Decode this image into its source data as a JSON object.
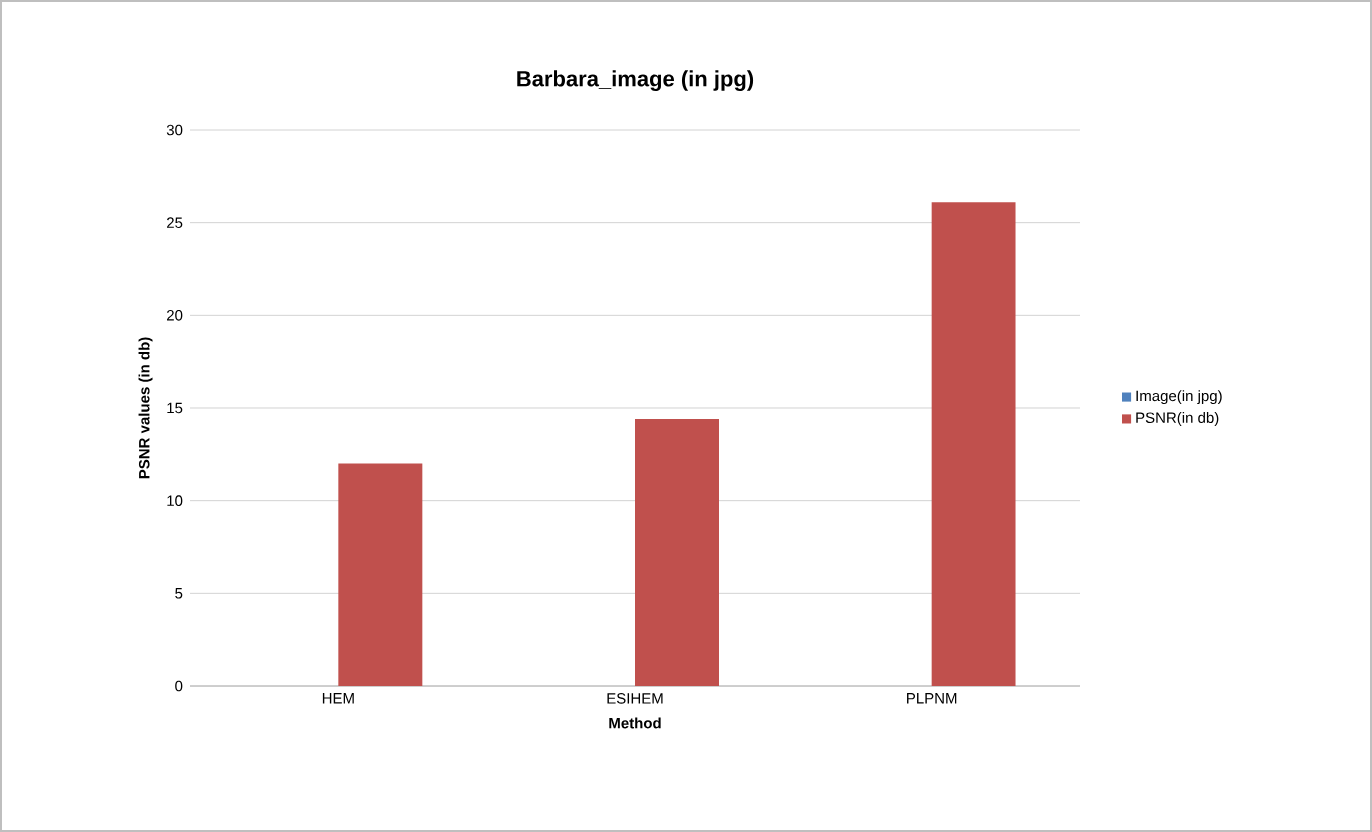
{
  "chart_data": {
    "type": "bar",
    "title": "Barbara_image (in jpg)",
    "xlabel": "Method",
    "ylabel": "PSNR values (in db)",
    "categories": [
      "HEM",
      "ESIHEM",
      "PLPNM"
    ],
    "series": [
      {
        "name": "Image(in jpg)",
        "color": "#4f81bd",
        "values": [
          0,
          0,
          0
        ]
      },
      {
        "name": "PSNR(in db)",
        "color": "#c0504d",
        "values": [
          12,
          14.4,
          26.1
        ]
      }
    ],
    "ylim": [
      0,
      30
    ],
    "yticks": [
      0,
      5,
      10,
      15,
      20,
      25,
      30
    ],
    "grid": "y",
    "legend": "right"
  }
}
